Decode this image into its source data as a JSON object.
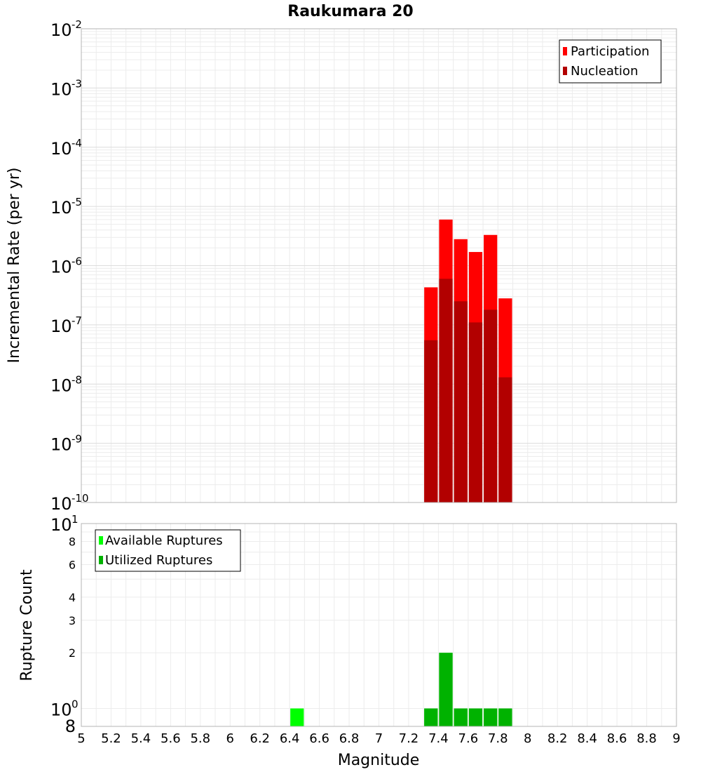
{
  "chart_data": [
    {
      "type": "bar",
      "title": "Raukumara 20",
      "ylabel": "Incremental Rate (per yr)",
      "yscale": "log",
      "ylim": [
        1e-10,
        0.01
      ],
      "xlim": [
        5,
        9
      ],
      "y_ticks": [
        {
          "base": "10",
          "exp": "-2"
        },
        {
          "base": "10",
          "exp": "-3"
        },
        {
          "base": "10",
          "exp": "-4"
        },
        {
          "base": "10",
          "exp": "-5"
        },
        {
          "base": "10",
          "exp": "-6"
        },
        {
          "base": "10",
          "exp": "-7"
        },
        {
          "base": "10",
          "exp": "-8"
        },
        {
          "base": "10",
          "exp": "-9"
        },
        {
          "base": "10",
          "exp": "-10"
        }
      ],
      "bar_width": 0.1,
      "legend": "top-right",
      "grid": true,
      "series": [
        {
          "name": "Participation",
          "color": "#ff0000",
          "x": [
            7.35,
            7.45,
            7.55,
            7.65,
            7.75,
            7.85
          ],
          "values": [
            4.3e-07,
            6e-06,
            2.8e-06,
            1.7e-06,
            3.3e-06,
            2.8e-07
          ]
        },
        {
          "name": "Nucleation",
          "color": "#b20000",
          "x": [
            7.35,
            7.45,
            7.55,
            7.65,
            7.75,
            7.85
          ],
          "values": [
            5.5e-08,
            6e-07,
            2.5e-07,
            1.1e-07,
            1.8e-07,
            1.3e-08
          ]
        }
      ]
    },
    {
      "type": "bar",
      "ylabel": "Rupture Count",
      "xlabel": "Magnitude",
      "yscale": "log",
      "ylim": [
        0.8,
        10
      ],
      "xlim": [
        5,
        9
      ],
      "y_ticks_major": [
        {
          "value": 10,
          "base": "10",
          "exp": "1"
        },
        {
          "value": 1,
          "base": "10",
          "exp": "0"
        }
      ],
      "y_ticks_minor": [
        {
          "value": 8,
          "label": "8"
        },
        {
          "value": 6,
          "label": "6"
        },
        {
          "value": 4,
          "label": "4"
        },
        {
          "value": 3,
          "label": "3"
        },
        {
          "value": 2,
          "label": "2"
        }
      ],
      "y_tick_bottom": {
        "value": 0.8,
        "label": "8"
      },
      "x_ticks": [
        "5",
        "5.2",
        "5.4",
        "5.6",
        "5.8",
        "6",
        "6.2",
        "6.4",
        "6.6",
        "6.8",
        "7",
        "7.2",
        "7.4",
        "7.6",
        "7.8",
        "8",
        "8.2",
        "8.4",
        "8.6",
        "8.8",
        "9"
      ],
      "bar_width": 0.1,
      "legend": "top-left",
      "grid": true,
      "series": [
        {
          "name": "Available Ruptures",
          "color": "#00ff00",
          "x": [
            6.45,
            7.35,
            7.45,
            7.55,
            7.65,
            7.75,
            7.85
          ],
          "values": [
            1,
            1,
            2,
            1,
            1,
            1,
            1
          ]
        },
        {
          "name": "Utilized Ruptures",
          "color": "#00b200",
          "x": [
            7.35,
            7.45,
            7.55,
            7.65,
            7.75,
            7.85
          ],
          "values": [
            1,
            2,
            1,
            1,
            1,
            1
          ]
        }
      ]
    }
  ]
}
